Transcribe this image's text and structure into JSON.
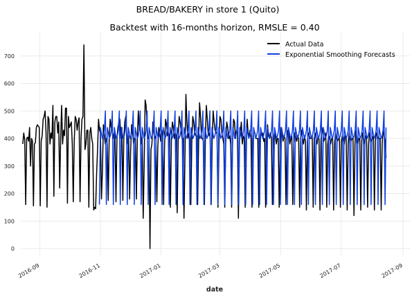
{
  "chart_data": {
    "type": "line",
    "title": "BREAD/BAKERY in store 1 (Quito)",
    "subtitle": "Backtest with 16-months horizon, RMSLE = 0.40",
    "xlabel": "date",
    "ylabel": "",
    "xlim": [
      "2016-08-13",
      "2017-09-08"
    ],
    "ylim": [
      -25,
      785
    ],
    "x_ticks": [
      {
        "value": "2016-09-01",
        "label": "2016-09"
      },
      {
        "value": "2016-11-01",
        "label": "2016-11"
      },
      {
        "value": "2017-01-01",
        "label": "2017-01"
      },
      {
        "value": "2017-03-01",
        "label": "2017-03"
      },
      {
        "value": "2017-05-01",
        "label": "2017-05"
      },
      {
        "value": "2017-07-01",
        "label": "2017-07"
      },
      {
        "value": "2017-09-01",
        "label": "2017-09"
      }
    ],
    "y_ticks": [
      0,
      100,
      200,
      300,
      400,
      500,
      600,
      700
    ],
    "grid": true,
    "legend_position": "top-right",
    "series": [
      {
        "name": "Actual Data",
        "color": "#000000",
        "start": "2016-08-15",
        "end": "2017-08-15",
        "values": [
          380,
          420,
          395,
          160,
          400,
          405,
          390,
          440,
          300,
          400,
          390,
          155,
          380,
          385,
          440,
          450,
          445,
          440,
          155,
          390,
          410,
          470,
          480,
          500,
          420,
          150,
          480,
          470,
          380,
          420,
          400,
          520,
          190,
          460,
          480,
          480,
          420,
          460,
          220,
          400,
          520,
          380,
          430,
          410,
          510,
          510,
          165,
          480,
          440,
          450,
          460,
          380,
          170,
          390,
          480,
          470,
          430,
          460,
          475,
          170,
          400,
          470,
          480,
          740,
          360,
          380,
          430,
          430,
          150,
          420,
          440,
          400,
          380,
          140,
          150,
          145,
          270,
          360,
          470,
          430,
          420,
          180,
          280,
          450,
          410,
          380,
          400,
          380,
          175,
          400,
          470,
          440,
          430,
          400,
          420,
          410,
          170,
          400,
          440,
          460,
          470,
          400,
          440,
          175,
          400,
          460,
          480,
          420,
          380,
          410,
          180,
          350,
          450,
          430,
          380,
          400,
          400,
          180,
          410,
          500,
          430,
          440,
          380,
          410,
          110,
          300,
          540,
          520,
          450,
          400,
          400,
          0,
          360,
          380,
          460,
          420,
          400,
          410,
          170,
          370,
          440,
          420,
          390,
          430,
          410,
          160,
          380,
          470,
          450,
          410,
          420,
          410,
          150,
          390,
          460,
          440,
          400,
          420,
          410,
          130,
          390,
          480,
          460,
          430,
          400,
          400,
          110,
          330,
          560,
          460,
          400,
          420,
          400,
          160,
          390,
          480,
          460,
          420,
          410,
          410,
          160,
          380,
          530,
          480,
          400,
          400,
          390,
          160,
          400,
          520,
          470,
          410,
          420,
          400,
          160,
          380,
          500,
          460,
          430,
          420,
          420,
          150,
          380,
          480,
          470,
          420,
          400,
          380,
          150,
          380,
          460,
          440,
          400,
          410,
          380,
          150,
          390,
          470,
          460,
          400,
          430,
          420,
          110,
          390,
          420,
          460,
          380,
          410,
          400,
          150,
          380,
          470,
          420,
          410,
          430,
          400,
          150,
          390,
          430,
          420,
          400,
          400,
          400,
          150,
          390,
          430,
          410,
          420,
          390,
          400,
          150,
          380,
          450,
          410,
          400,
          420,
          400,
          160,
          390,
          420,
          410,
          380,
          400,
          400,
          150,
          380,
          440,
          420,
          390,
          410,
          400,
          160,
          400,
          430,
          420,
          380,
          400,
          410,
          160,
          380,
          420,
          410,
          390,
          410,
          400,
          150,
          400,
          430,
          400,
          380,
          410,
          390,
          140,
          390,
          420,
          410,
          400,
          400,
          410,
          150,
          400,
          420,
          400,
          380,
          410,
          400,
          140,
          390,
          440,
          420,
          390,
          400,
          420,
          150,
          380,
          410,
          400,
          380,
          400,
          400,
          140,
          380,
          420,
          400,
          390,
          400,
          400,
          150,
          390,
          410,
          400,
          380,
          410,
          400,
          140,
          380,
          420,
          400,
          390,
          400,
          400,
          120,
          380,
          430,
          400,
          380,
          400,
          400,
          140,
          390,
          420,
          400,
          380,
          410,
          400,
          150,
          380,
          420,
          400,
          390,
          400,
          410,
          140,
          390,
          420,
          410,
          400,
          400,
          400,
          140,
          380,
          430,
          410,
          390,
          330
        ]
      },
      {
        "name": "Exponential Smoothing Forecasts",
        "color": "#1040e0",
        "start": "2016-10-31",
        "end": "2017-08-15",
        "weekly_pattern": [
          160,
          440,
          420,
          400,
          410,
          430,
          500
        ]
      }
    ]
  }
}
